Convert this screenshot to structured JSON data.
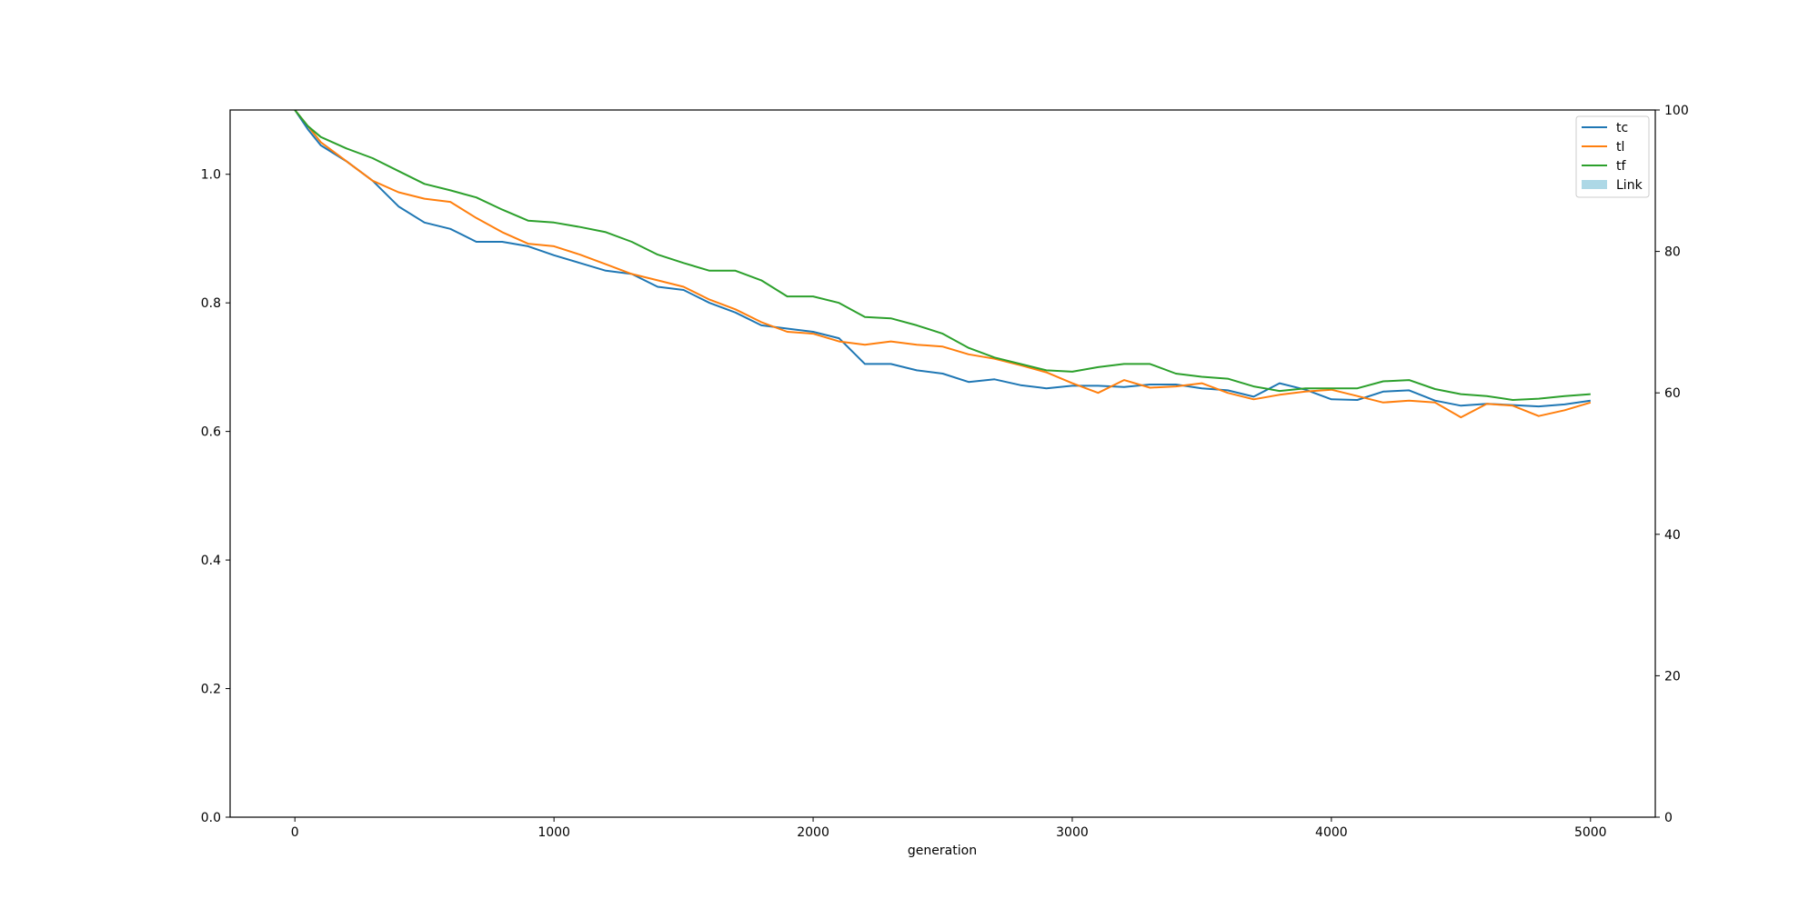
{
  "chart_data": {
    "type": "line",
    "title": "",
    "xlabel": "generation",
    "ylabel": "",
    "y2label": "",
    "xlim": [
      -250,
      5250
    ],
    "ylim": [
      0,
      1.1
    ],
    "y2lim": [
      0,
      100
    ],
    "x_ticks": [
      0,
      1000,
      2000,
      3000,
      4000,
      5000
    ],
    "y_ticks": [
      0.0,
      0.2,
      0.4,
      0.6,
      0.8,
      1.0
    ],
    "y_tick_labels": [
      "0.0",
      "0.2",
      "0.4",
      "0.6",
      "0.8",
      "1.0"
    ],
    "y2_ticks": [
      0,
      20,
      40,
      60,
      80,
      100
    ],
    "grid": false,
    "legend_position": "top-right",
    "x": [
      0,
      50,
      100,
      200,
      300,
      400,
      500,
      600,
      700,
      800,
      900,
      1000,
      1100,
      1200,
      1300,
      1400,
      1500,
      1600,
      1700,
      1800,
      1900,
      2000,
      2100,
      2200,
      2300,
      2400,
      2500,
      2600,
      2700,
      2800,
      2900,
      3000,
      3100,
      3200,
      3300,
      3400,
      3500,
      3600,
      3700,
      3800,
      3900,
      4000,
      4100,
      4200,
      4300,
      4400,
      4500,
      4600,
      4700,
      4800,
      4900,
      5000
    ],
    "series": [
      {
        "name": "tc",
        "color": "#1f77b4",
        "axis": "left",
        "values": [
          1.1,
          1.07,
          1.045,
          1.02,
          0.99,
          0.95,
          0.925,
          0.915,
          0.895,
          0.895,
          0.888,
          0.874,
          0.862,
          0.85,
          0.845,
          0.825,
          0.82,
          0.8,
          0.785,
          0.765,
          0.76,
          0.755,
          0.745,
          0.705,
          0.705,
          0.695,
          0.69,
          0.677,
          0.681,
          0.672,
          0.667,
          0.671,
          0.671,
          0.669,
          0.673,
          0.673,
          0.667,
          0.664,
          0.654,
          0.675,
          0.665,
          0.65,
          0.649,
          0.662,
          0.664,
          0.648,
          0.64,
          0.643,
          0.641,
          0.639,
          0.642,
          0.648
        ]
      },
      {
        "name": "tl",
        "color": "#ff7f0e",
        "axis": "left",
        "values": [
          1.1,
          1.075,
          1.05,
          1.02,
          0.99,
          0.972,
          0.962,
          0.957,
          0.932,
          0.91,
          0.892,
          0.888,
          0.875,
          0.86,
          0.845,
          0.835,
          0.825,
          0.805,
          0.79,
          0.77,
          0.755,
          0.752,
          0.74,
          0.735,
          0.74,
          0.735,
          0.732,
          0.72,
          0.713,
          0.703,
          0.692,
          0.675,
          0.66,
          0.68,
          0.668,
          0.67,
          0.675,
          0.66,
          0.65,
          0.657,
          0.662,
          0.665,
          0.655,
          0.645,
          0.648,
          0.645,
          0.622,
          0.643,
          0.64,
          0.624,
          0.633,
          0.645
        ]
      },
      {
        "name": "tf",
        "color": "#2ca02c",
        "axis": "left",
        "values": [
          1.1,
          1.075,
          1.058,
          1.04,
          1.025,
          1.005,
          0.985,
          0.975,
          0.964,
          0.945,
          0.928,
          0.925,
          0.918,
          0.91,
          0.895,
          0.875,
          0.862,
          0.85,
          0.85,
          0.835,
          0.81,
          0.81,
          0.8,
          0.778,
          0.776,
          0.765,
          0.752,
          0.73,
          0.715,
          0.705,
          0.695,
          0.693,
          0.7,
          0.705,
          0.705,
          0.69,
          0.685,
          0.682,
          0.67,
          0.663,
          0.667,
          0.667,
          0.667,
          0.678,
          0.68,
          0.666,
          0.658,
          0.655,
          0.649,
          0.651,
          0.655,
          0.658
        ]
      }
    ],
    "link": {
      "name": "Link",
      "color": "#add8e6",
      "axis": "right",
      "type": "bar",
      "values": []
    }
  }
}
